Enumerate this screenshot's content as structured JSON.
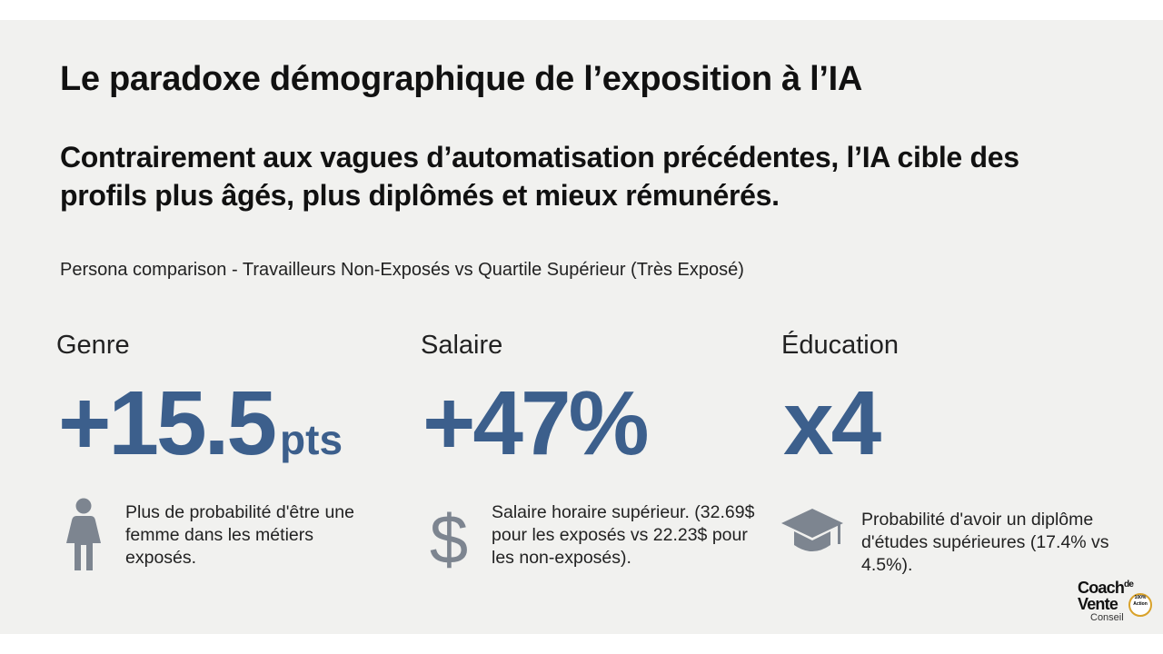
{
  "title": "Le paradoxe démographique de l’exposition à l’IA",
  "subtitle": "Contrairement aux vagues d’automatisation précédentes, l’IA cible des profils plus âgés, plus diplômés et mieux rémunérés.",
  "caption": "Persona comparison - Travailleurs Non-Exposés vs Quartile Supérieur (Très Exposé)",
  "accent_color": "#3c5f8c",
  "icon_color": "#7d8590",
  "stats": [
    {
      "heading": "Genre",
      "value": "+15.5",
      "unit": "pts",
      "icon": "person-female-icon",
      "description": "Plus de probabilité d'être une femme dans les métiers exposés."
    },
    {
      "heading": "Salaire",
      "value": "+47%",
      "unit": "",
      "icon": "dollar-icon",
      "description": "Salaire horaire supérieur. (32.69$ pour les exposés vs 22.23$ pour les non-exposés)."
    },
    {
      "heading": "Éducation",
      "value": "x4",
      "unit": "",
      "icon": "graduation-cap-icon",
      "description": "Probabilité d'avoir un diplôme d'études supérieures (17.4% vs 4.5%)."
    }
  ],
  "logo": {
    "line1": "Coach",
    "line1_sup": "de",
    "line2": "Vente",
    "line3": "Conseil",
    "badge": "100% Action"
  }
}
